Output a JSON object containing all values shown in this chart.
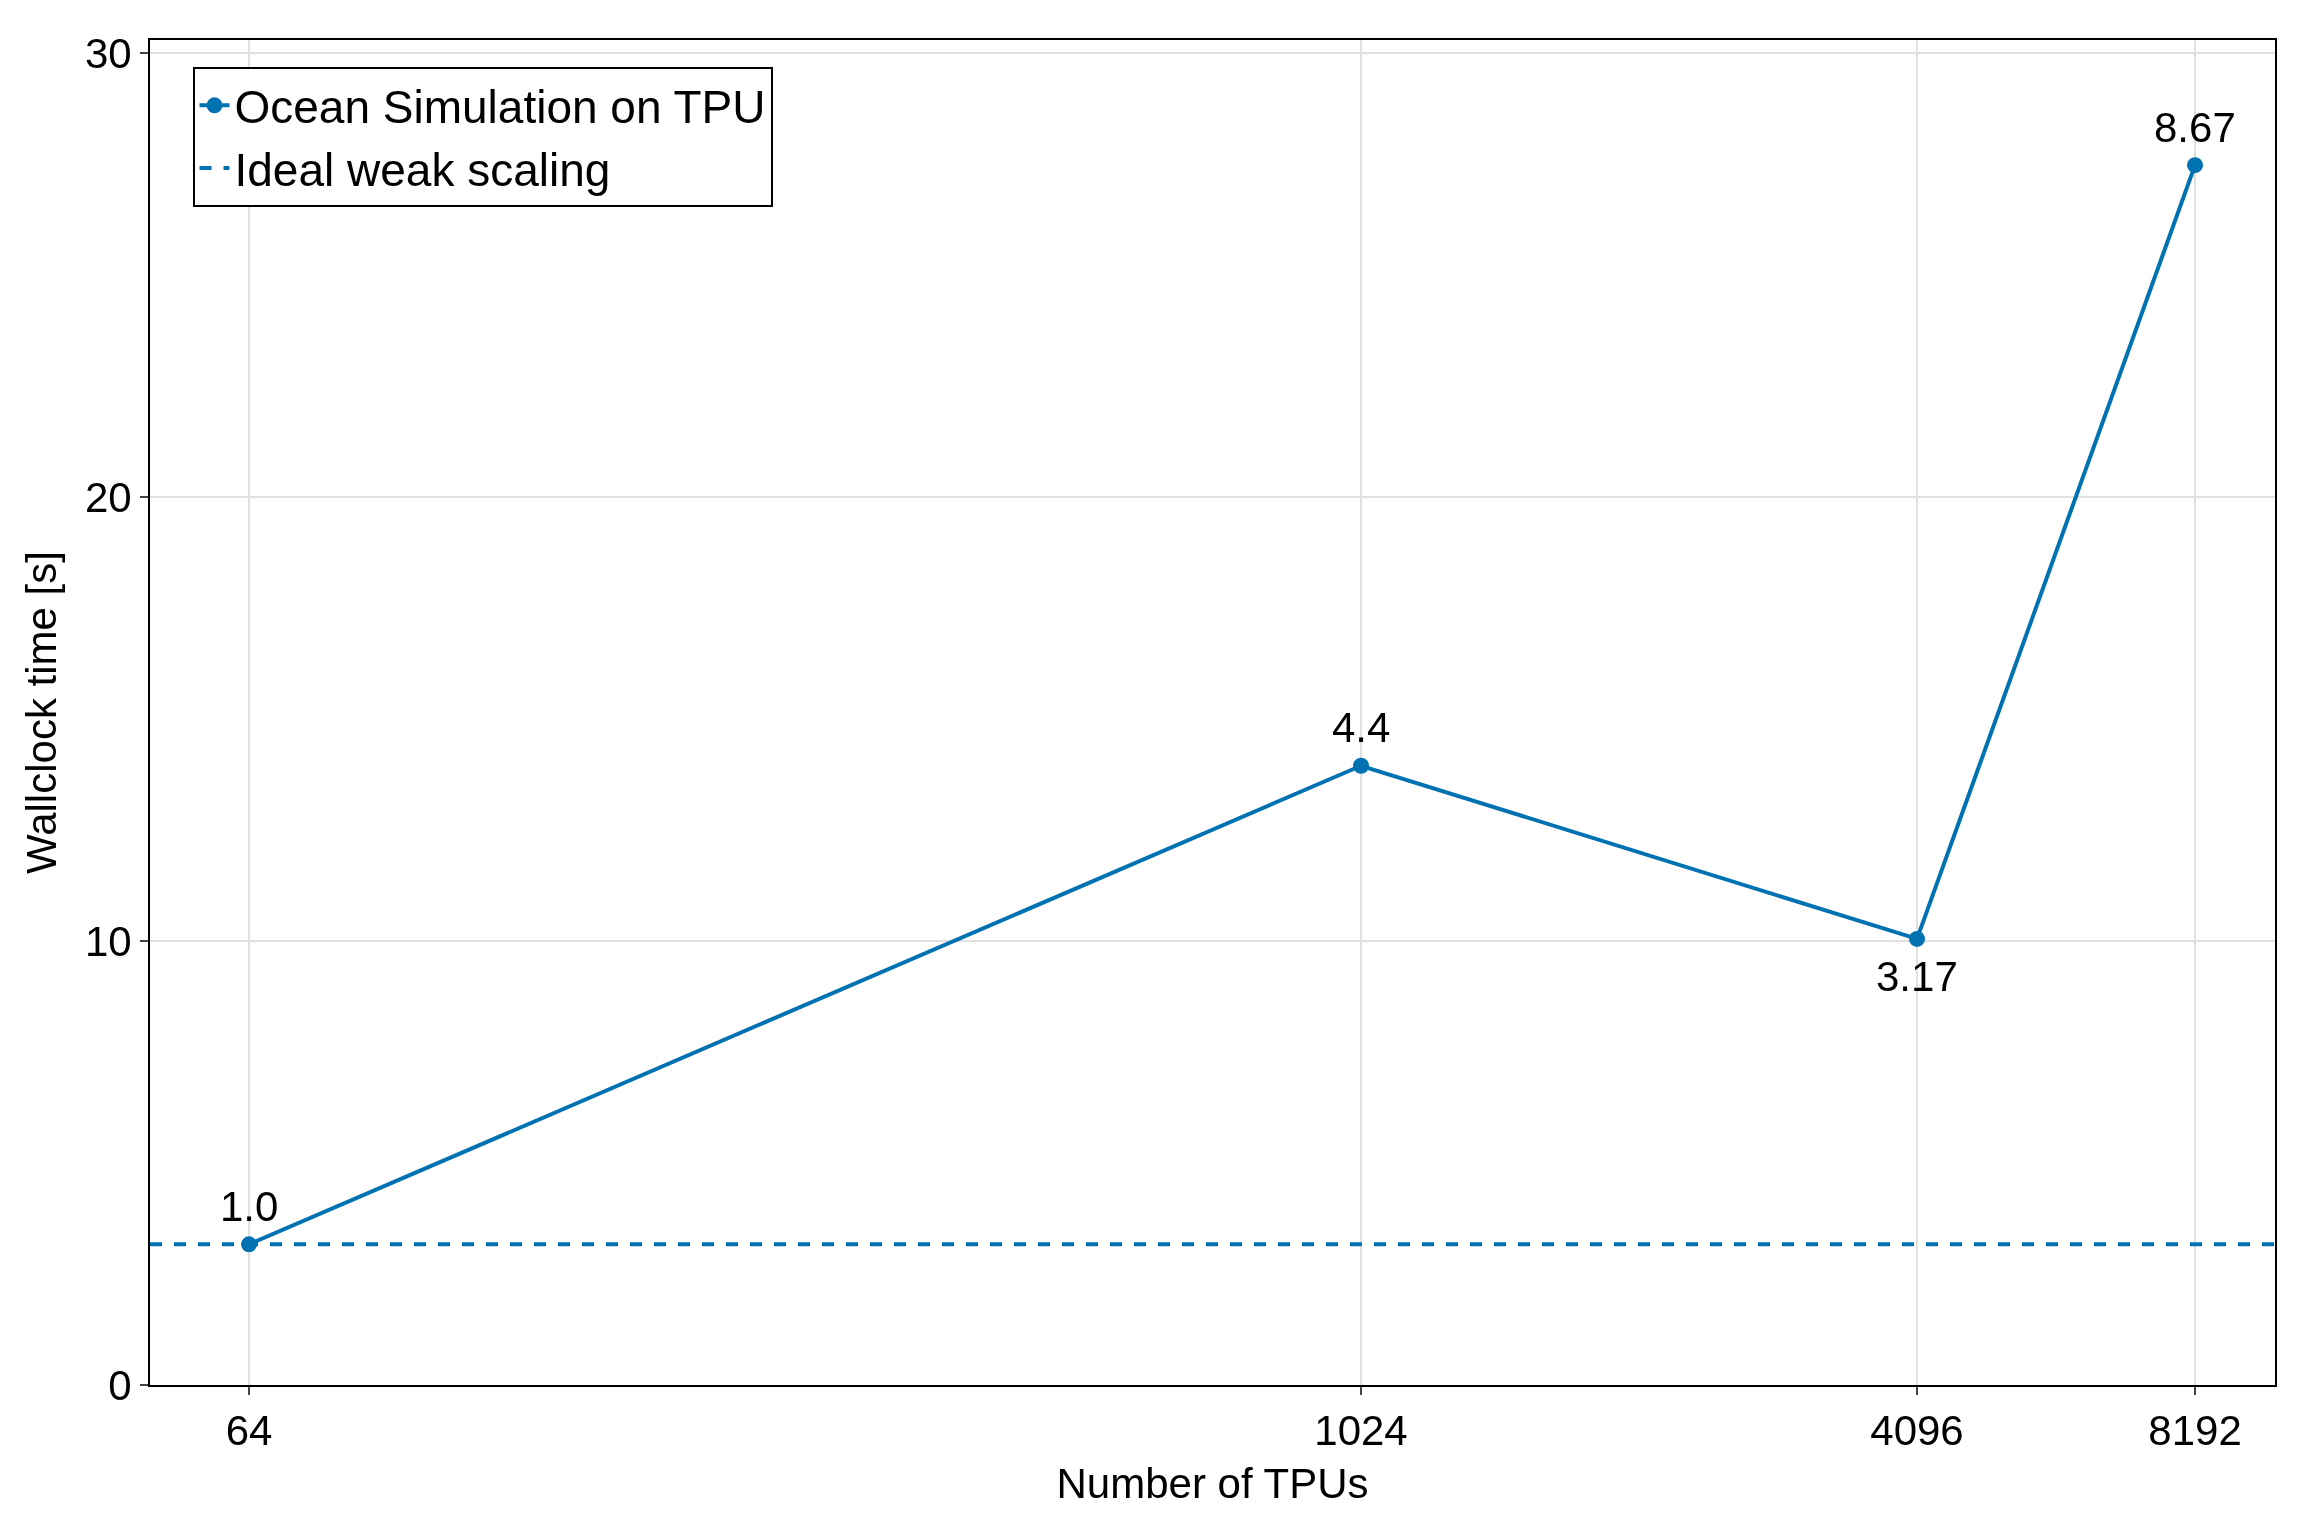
{
  "chart_data": {
    "type": "line",
    "xlabel": "Number of TPUs",
    "ylabel": "Wallclock time [s]",
    "x": [
      64,
      1024,
      4096,
      8192
    ],
    "log": "x",
    "series": [
      {
        "name": "Ocean Simulation on TPU",
        "color": "#0072b2",
        "values": [
          3.17,
          13.95,
          10.05,
          27.48
        ],
        "marker": "circle",
        "line_style": "solid"
      },
      {
        "name": "Ideal weak scaling",
        "color": "#0072b2",
        "x": [
          50,
          10000
        ],
        "values": [
          3.17,
          3.17
        ],
        "marker": "none",
        "line_style": "dashed"
      }
    ],
    "xlim": [
      50,
      10000
    ],
    "xticks": [
      64,
      1024,
      4096,
      8192
    ],
    "ylim": [
      0,
      30.3
    ],
    "yticks": [
      0,
      10,
      20,
      30
    ],
    "annotations": [
      {
        "text": "1.0",
        "x": 64,
        "y": 3.17
      },
      {
        "text": "4.4",
        "x": 1024,
        "y": 13.95
      },
      {
        "text": "3.17",
        "x": 4096,
        "y": 10.05
      },
      {
        "text": "8.67",
        "x": 8192,
        "y": 27.48
      }
    ],
    "grid": true,
    "legend": "top left"
  }
}
